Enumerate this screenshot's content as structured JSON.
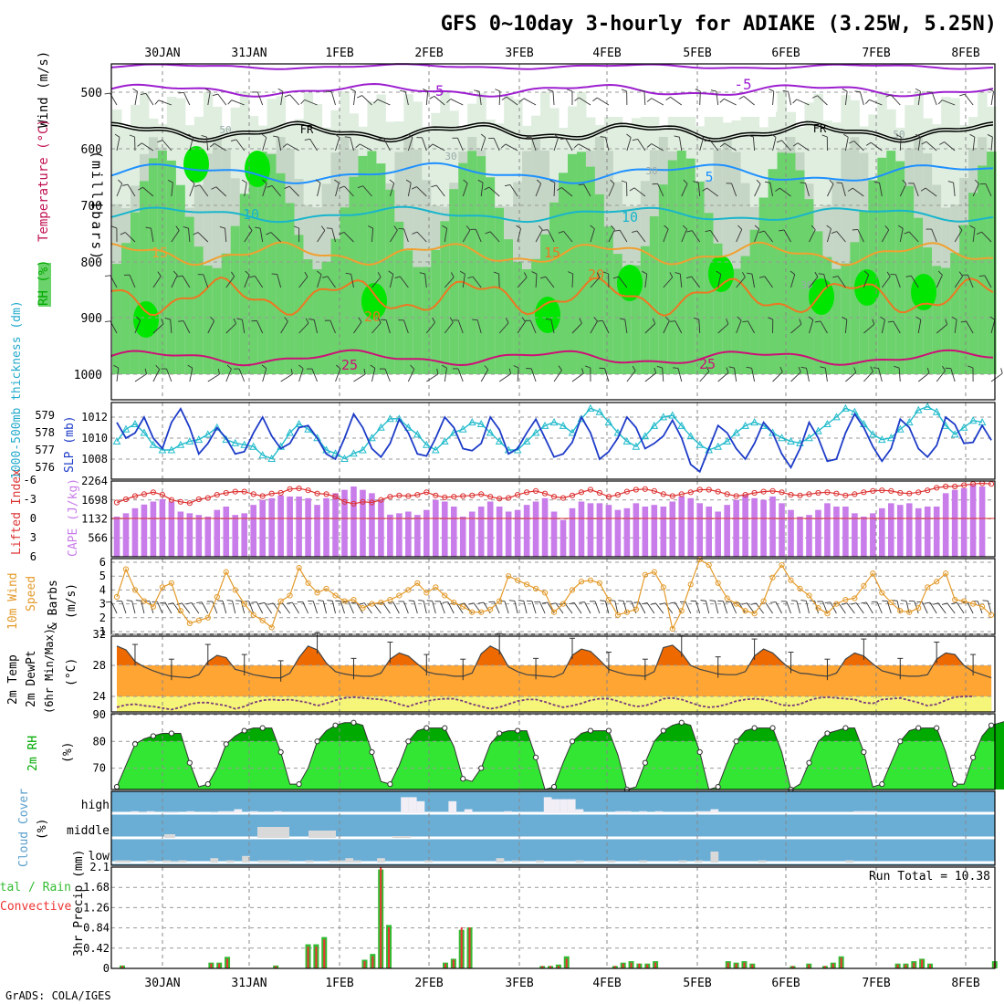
{
  "title": "GFS 0~10day 3-hourly for ADIAKE (3.25W, 5.25N)",
  "credit": "GrADS: COLA/IGES",
  "dates": [
    "30JAN",
    "31JAN",
    "1FEB",
    "2FEB",
    "3FEB",
    "4FEB",
    "5FEB",
    "6FEB",
    "7FEB",
    "8FEB"
  ],
  "colors": {
    "rh_light": "#e0eee0",
    "rh_mid": "#c6d6c6",
    "rh_green": "#6cd26c",
    "rh_bright": "#00e600",
    "purple": "#9d1fcf",
    "black": "#000000",
    "blue": "#1e90ff",
    "cyan": "#18b5cc",
    "orange_light": "#f0a030",
    "orange": "#ee7722",
    "magenta": "#cc1177",
    "slp": "#1e3cc8",
    "thick": "#22bbcc",
    "li": "#dd3333",
    "cape": "#c87dea",
    "wind10": "#e39a2a",
    "temp_hi": "#ee6a00",
    "temp_mid": "#ffa533",
    "dew_fill": "#f5f57a",
    "rh_dark": "#00aa00",
    "rh_light2": "#33e633",
    "cloud": "#6aaed6",
    "cloud_bar": "#d9d9d9",
    "cloud_high": "#f2eef5",
    "precip_total": "#33bb33",
    "precip_conv": "#ee3333"
  },
  "panels": {
    "upper": {
      "ylabel_main": "(millibars)",
      "label_wind": "Wind (m/s)",
      "label_temp": "Temperature (°C)",
      "label_rh": "RH (%)",
      "levels": [
        "500",
        "600",
        "700",
        "800",
        "900",
        "1000"
      ],
      "contour_labels": [
        "-5",
        "-5",
        "FR",
        "FR",
        "50",
        "50",
        "30",
        "5",
        "30",
        "10",
        "10",
        "15",
        "15",
        "20",
        "20",
        "30",
        "25",
        "25"
      ]
    },
    "slp": {
      "label_thick": "1000-500mb thickness (dm)",
      "label_slp": "SLP (mb)",
      "thick_ticks": [
        "579",
        "578",
        "577",
        "576"
      ],
      "slp_ticks": [
        "1012",
        "1010",
        "1008"
      ]
    },
    "cape": {
      "label_li": "Lifted Index",
      "label_cape": "CAPE (J/kg)",
      "li_ticks": [
        "-6",
        "-3",
        "0",
        "3",
        "6"
      ],
      "cape_ticks": [
        "2264",
        "1698",
        "1132",
        "566"
      ]
    },
    "wind10": {
      "label_a": "10m Wind",
      "label_b": "Speed",
      "label_c": "& Barbs",
      "label_units": "(m/s)",
      "ticks": [
        "6",
        "5",
        "4",
        "3",
        "2",
        "1"
      ]
    },
    "temp": {
      "label_a": "2m Temp",
      "label_b": "2m DewPt",
      "label_c": "(6hr Min/Max)",
      "label_units": "(°C)",
      "ticks": [
        "32",
        "28",
        "24"
      ]
    },
    "rh2m": {
      "label_a": "2m RH",
      "label_units": "(%)",
      "ticks": [
        "90",
        "80",
        "70"
      ]
    },
    "cloud": {
      "label_a": "Cloud Cover",
      "label_units": "(%)",
      "levels": [
        "high",
        "middle",
        "low"
      ]
    },
    "precip": {
      "label_units": "3hr Precip (mm)",
      "label_total": "Total / Rain",
      "label_conv": "Convective",
      "run_total": "Run Total = 10.38",
      "ticks": [
        "2.1",
        "1.68",
        "1.26",
        "0.84",
        "0.42",
        "0"
      ]
    }
  },
  "chart_data": {
    "type": "meteogram",
    "x_unit": "3-hour steps from 29JAN 12Z",
    "slp_mb": [
      1011.5,
      1010,
      1010.5,
      1012,
      1010,
      1009,
      1011.5,
      1012.8,
      1011,
      1008.5,
      1009.5,
      1011,
      1010,
      1008.5,
      1008.7,
      1010.5,
      1012,
      1010.2,
      1009,
      1009.5,
      1011,
      1011.2,
      1010,
      1008.5,
      1008,
      1010,
      1012.3,
      1011,
      1009,
      1008.2,
      1009.5,
      1011.8,
      1010.5,
      1008.5,
      1008.3,
      1010,
      1012,
      1011,
      1009,
      1008.8,
      1009.5,
      1012,
      1010.8,
      1008.5,
      1009,
      1010.5,
      1011.8,
      1010,
      1008.2,
      1008.5,
      1009.6,
      1012,
      1010.5,
      1008,
      1008.7,
      1010,
      1012,
      1011,
      1009,
      1009.5,
      1010.2,
      1011.7,
      1010,
      1007.5,
      1006.8,
      1009,
      1011.2,
      1010.5,
      1009,
      1008,
      1009.5,
      1011.5,
      1010.5,
      1008.5,
      1007.2,
      1009,
      1011.5,
      1010,
      1007.8,
      1008,
      1010.5,
      1012.3,
      1011,
      1009.2,
      1007.8,
      1009,
      1011.8,
      1011,
      1009,
      1008.2,
      1009.3,
      1012,
      1011.3,
      1009.5,
      1009.6,
      1011.2,
      1009.8
    ],
    "thickness_dm": [
      577.5,
      578.2,
      578.5,
      578,
      577.3,
      577,
      577,
      577.3,
      577.5,
      577.6,
      577.9,
      578.3,
      577.6,
      577.4,
      577.3,
      577.2,
      576.7,
      576.5,
      577.2,
      578,
      578.5,
      578.2,
      577.7,
      577,
      576.8,
      576.5,
      576.8,
      577,
      577.7,
      578.3,
      578.8,
      578.8,
      578.3,
      577.9,
      577.3,
      577,
      577.5,
      578,
      578.2,
      578.6,
      578.5,
      578,
      577.5,
      577,
      577,
      577.5,
      578,
      578.4,
      578.6,
      578.4,
      578,
      578.8,
      579.4,
      579.2,
      578.6,
      578,
      577.5,
      577.2,
      577.8,
      578.4,
      578.9,
      579,
      578.4,
      577.8,
      577.3,
      577,
      577.2,
      577.5,
      578,
      578.4,
      578.6,
      578.4,
      578,
      577.7,
      577.5,
      577.4,
      577.7,
      578.1,
      578.5,
      578.9,
      579.4,
      579.2,
      578.5,
      577.9,
      577.6,
      577.7,
      578.2,
      578.6,
      579.3,
      579.5,
      579.2,
      578.4,
      577.9,
      578.3,
      578.7,
      578.6
    ],
    "lifted_index": [
      -2.5,
      -3,
      -3.5,
      -3.8,
      -4.1,
      -3.7,
      -2.9,
      -2.6,
      -2.4,
      -3,
      -3.2,
      -3.7,
      -4,
      -4.2,
      -4.2,
      -3.8,
      -3.5,
      -3.9,
      -4,
      -4.6,
      -4.7,
      -4.4,
      -3.9,
      -3.8,
      -3.4,
      -2.6,
      -2.3,
      -2.6,
      -2.5,
      -2.9,
      -3.4,
      -3.6,
      -3.5,
      -3.7,
      -4.1,
      -3.6,
      -3.3,
      -3.4,
      -3.5,
      -3.6,
      -3.8,
      -3.4,
      -3.1,
      -3.2,
      -3.7,
      -4.1,
      -4.3,
      -3.9,
      -3.4,
      -3.2,
      -3.6,
      -4.1,
      -4.5,
      -4,
      -3.4,
      -3.7,
      -4.2,
      -4.5,
      -4.6,
      -4.3,
      -3.8,
      -3.5,
      -3.8,
      -4.1,
      -4.5,
      -4.5,
      -4.2,
      -3.8,
      -3.5,
      -3.7,
      -4,
      -4.2,
      -4.3,
      -4.1,
      -3.7,
      -3.6,
      -3.8,
      -4,
      -4.1,
      -3.9,
      -3.6,
      -3.8,
      -4.1,
      -4.3,
      -4.4,
      -4.3,
      -4,
      -3.9,
      -4.1,
      -4.4,
      -4.8,
      -5,
      -5,
      -5.2,
      -5.4,
      -5.5,
      -5.4
    ],
    "cape_jkg": [
      1200,
      1300,
      1450,
      1560,
      1650,
      1720,
      1650,
      1350,
      1300,
      1250,
      1200,
      1400,
      1500,
      1250,
      1300,
      1550,
      1700,
      1750,
      1830,
      1800,
      1800,
      1750,
      1550,
      1750,
      1900,
      2000,
      2100,
      2000,
      1900,
      1700,
      1260,
      1300,
      1350,
      1250,
      1400,
      1700,
      1650,
      1500,
      1200,
      1350,
      1500,
      1650,
      1500,
      1350,
      1400,
      1550,
      1650,
      1750,
      1350,
      1100,
      1450,
      1650,
      1600,
      1600,
      1550,
      1400,
      1450,
      1600,
      1500,
      1550,
      1500,
      1650,
      1800,
      1750,
      1600,
      1500,
      1350,
      1550,
      1700,
      1850,
      1750,
      1700,
      1800,
      1600,
      1400,
      1200,
      1250,
      1400,
      1600,
      1500,
      1500,
      1300,
      1200,
      1300,
      1450,
      1600,
      1550,
      1600,
      1450,
      1500,
      1500,
      1900,
      2000,
      2050,
      2150,
      2100
    ],
    "wind10_ms": [
      3.5,
      5.5,
      4,
      3.2,
      2.8,
      4.2,
      4.5,
      2.5,
      1.6,
      1.8,
      2,
      3.5,
      5.3,
      4,
      3,
      2.2,
      1.8,
      1.3,
      3.2,
      3.6,
      5.6,
      4.5,
      3.8,
      4.1,
      3.6,
      3.2,
      3.3,
      2.7,
      3,
      3.1,
      3.3,
      3.6,
      4,
      4.5,
      3.8,
      4.2,
      3.6,
      3.1,
      2.8,
      2.4,
      2.4,
      2.6,
      3.2,
      5,
      4.7,
      4.4,
      4.1,
      3.8,
      2.4,
      3,
      4,
      4.6,
      4.7,
      4.5,
      3.3,
      2.2,
      2.4,
      2.6,
      5.1,
      5.3,
      4.2,
      1.2,
      2.5,
      4.4,
      6.2,
      5.8,
      4.5,
      3.4,
      3,
      2.5,
      2.3,
      3.2,
      4.9,
      5.8,
      4.7,
      4.1,
      3.6,
      2.7,
      2.3,
      3,
      3.3,
      3.4,
      4.3,
      5.2,
      3.8,
      3.1,
      2.5,
      2.4,
      2.7,
      4.2,
      4.6,
      5.2,
      3.3,
      3.2,
      3,
      2.8,
      2.2
    ],
    "temp2m_c": [
      30.5,
      30,
      28.5,
      27.8,
      27.3,
      26.9,
      26.6,
      26.5,
      26.4,
      26.8,
      28.5,
      29.3,
      29,
      27.5,
      27.2,
      26.8,
      26.6,
      26.4,
      26.4,
      27,
      29,
      30.5,
      30,
      28.3,
      27.2,
      26.9,
      26.7,
      26.6,
      26.6,
      27,
      28.8,
      29.6,
      29.2,
      28.2,
      27.2,
      26.9,
      26.8,
      26.6,
      26.6,
      27,
      29.5,
      30.5,
      29.9,
      27.8,
      27.2,
      26.8,
      26.7,
      26.6,
      26.5,
      27,
      29.3,
      30.1,
      29.8,
      28.7,
      27.5,
      27.1,
      26.8,
      26.7,
      26.6,
      27.2,
      30.3,
      30.6,
      29.6,
      28,
      27.5,
      27.2,
      26.9,
      26.8,
      26.8,
      27.2,
      29.2,
      30.1,
      29.6,
      28.5,
      27.5,
      27,
      26.9,
      26.7,
      26.6,
      27,
      28.8,
      29.6,
      29.2,
      28.2,
      27.3,
      27,
      26.7,
      26.6,
      26.6,
      26.8,
      28.8,
      29.6,
      29.4,
      28,
      27.2,
      26.8,
      26.4
    ],
    "dewpt2m_c": [
      22.6,
      22.9,
      23,
      22.8,
      22.7,
      22.5,
      22.3,
      22.6,
      23,
      23.2,
      23.2,
      23,
      22.8,
      22.4,
      22.7,
      23.2,
      23.5,
      23.6,
      23.5,
      23.6,
      23.4,
      23.2,
      22.8,
      23.1,
      23.5,
      23.8,
      23.9,
      23.8,
      23.7,
      23.6,
      23.4,
      23,
      22.7,
      23.1,
      23.4,
      23.6,
      23.7,
      23.7,
      23.4,
      23,
      22.7,
      22.4,
      22.6,
      23,
      23.4,
      23.6,
      23.6,
      23.3,
      22.9,
      22.6,
      22.8,
      23.1,
      23.5,
      23.7,
      23.7,
      23.4,
      23,
      22.7,
      22.8,
      23.2,
      23.7,
      23.8,
      23.6,
      23.2,
      22.8,
      22.6,
      22.7,
      23,
      23.4,
      23.6,
      23.7,
      23.6,
      23.3,
      22.9,
      22.8,
      23,
      23.5,
      23.8,
      23.9,
      23.8,
      23.7,
      23.6,
      23.2,
      23.1,
      23.6,
      23.7,
      23.8,
      23.5,
      23.2,
      22.8,
      23,
      23.5,
      23.9,
      24,
      24
    ],
    "rh2m_pct": [
      63,
      71,
      79,
      81,
      82,
      83,
      83,
      83,
      72,
      63,
      64,
      70,
      79,
      82,
      84,
      85,
      85,
      85,
      76,
      64,
      64,
      70,
      80,
      84,
      86,
      87,
      87,
      86,
      76,
      65,
      64,
      71,
      80,
      84,
      85,
      85,
      85,
      78,
      66,
      65,
      70,
      79,
      83,
      84,
      84,
      84,
      74,
      62,
      63,
      72,
      80,
      83,
      84,
      84,
      84,
      75,
      62,
      63,
      72,
      80,
      84,
      86,
      87,
      86,
      76,
      62,
      63,
      72,
      80,
      84,
      85,
      85,
      85,
      76,
      62,
      64,
      72,
      80,
      83,
      84,
      85,
      85,
      76,
      63,
      64,
      72,
      80,
      84,
      85,
      85,
      85,
      76,
      64,
      64,
      74,
      82,
      86,
      87,
      88
    ],
    "cloud_high_pct": [
      0,
      0,
      10,
      5,
      10,
      0,
      5,
      5,
      0,
      10,
      0,
      0,
      5,
      10,
      10,
      20,
      0,
      10,
      0,
      0,
      10,
      0,
      0,
      0,
      0,
      0,
      0,
      0,
      0,
      0,
      0,
      0,
      0,
      0,
      0,
      0,
      80,
      80,
      60,
      0,
      0,
      0,
      60,
      0,
      20,
      0,
      0,
      0,
      0,
      10,
      0,
      0,
      0,
      0,
      80,
      70,
      70,
      70,
      20,
      0,
      0,
      0,
      0,
      10,
      10,
      0,
      10,
      0,
      10,
      0,
      0,
      0,
      0,
      10,
      10,
      20,
      0,
      0,
      0,
      0,
      0,
      0,
      0,
      0,
      0,
      0,
      0,
      0,
      0,
      0,
      0,
      0,
      0,
      10,
      10,
      10,
      0,
      0,
      0,
      0,
      0,
      0,
      0,
      0,
      0,
      0,
      0,
      0,
      0,
      0,
      0
    ],
    "cloud_low_pct": [
      10,
      10,
      0,
      0,
      10,
      0,
      10,
      5,
      10,
      0,
      0,
      0,
      20,
      0,
      10,
      0,
      30,
      0,
      10,
      10,
      10,
      10,
      0,
      0,
      10,
      0,
      0,
      10,
      10,
      20,
      10,
      0,
      0,
      20,
      0,
      0,
      0,
      0,
      0,
      10,
      0,
      0,
      0,
      0,
      0,
      0,
      0,
      0,
      20,
      0,
      10,
      0,
      0,
      10,
      0,
      0,
      0,
      0,
      10,
      0,
      0,
      0,
      10,
      0,
      0,
      0,
      10,
      0,
      0,
      0,
      0,
      10,
      0,
      10,
      0,
      50,
      0,
      0,
      0,
      0,
      0,
      10,
      0,
      0,
      0,
      0,
      0,
      0,
      0,
      0,
      0,
      0,
      10,
      0,
      0,
      0,
      0,
      0,
      0,
      0,
      0,
      0,
      0,
      0,
      0,
      0,
      0,
      0,
      0,
      0
    ],
    "precip_total_mm": [
      0.06,
      0,
      0,
      0,
      0,
      0,
      0,
      0,
      0,
      0,
      0,
      0.12,
      0.12,
      0.24,
      0,
      0,
      0,
      0,
      0,
      0.06,
      0,
      0,
      0,
      0.5,
      0.5,
      0.65,
      0,
      0,
      0,
      0,
      0.18,
      0.3,
      2.05,
      0.9,
      0,
      0,
      0,
      0,
      0,
      0,
      0.12,
      0.2,
      0.8,
      0.85,
      0,
      0,
      0,
      0,
      0,
      0,
      0,
      0,
      0.05,
      0.05,
      0.08,
      0.25,
      0,
      0,
      0,
      0,
      0,
      0.05,
      0.12,
      0.15,
      0.1,
      0.1,
      0.15,
      0,
      0,
      0,
      0,
      0,
      0,
      0,
      0,
      0.15,
      0.12,
      0.15,
      0.1,
      0,
      0,
      0,
      0,
      0.05,
      0,
      0.1,
      0,
      0.05,
      0.12,
      0.25,
      0,
      0,
      0,
      0,
      0,
      0,
      0.1,
      0.1,
      0.15,
      0.2,
      0.1,
      0,
      0,
      0,
      0,
      0,
      0,
      0,
      0.15
    ],
    "precip_conv_mm": [
      0.05,
      0,
      0,
      0,
      0,
      0,
      0,
      0,
      0,
      0,
      0,
      0.1,
      0.1,
      0.2,
      0,
      0,
      0,
      0,
      0,
      0.05,
      0,
      0,
      0,
      0.45,
      0.45,
      0.6,
      0,
      0,
      0,
      0,
      0.15,
      0.25,
      2.1,
      0.85,
      0,
      0,
      0,
      0,
      0,
      0,
      0.1,
      0.18,
      0.85,
      0.85,
      0,
      0,
      0,
      0,
      0,
      0,
      0,
      0.05,
      0.05,
      0.05,
      0.05,
      0.2,
      0,
      0,
      0,
      0,
      0,
      0.05,
      0.1,
      0.12,
      0.1,
      0.08,
      0.12,
      0,
      0,
      0,
      0,
      0.05,
      0,
      0,
      0,
      0.12,
      0.1,
      0.12,
      0.08,
      0,
      0,
      0,
      0,
      0.05,
      0,
      0.08,
      0,
      0.05,
      0.1,
      0.22,
      0,
      0,
      0,
      0,
      0,
      0,
      0.08,
      0.08,
      0.12,
      0.18,
      0.08,
      0,
      0,
      0,
      0,
      0,
      0,
      0,
      0.12
    ]
  }
}
